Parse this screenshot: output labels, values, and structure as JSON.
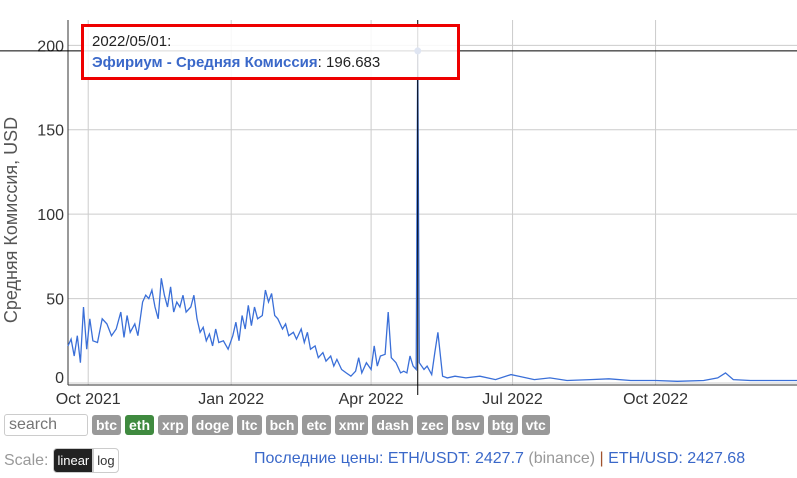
{
  "chart_data": {
    "type": "line",
    "ylabel": "Средняя Комиссия, USD",
    "ylim": [
      0,
      215
    ],
    "yticks": [
      0,
      50,
      100,
      150,
      200
    ],
    "xticks": [
      {
        "date": "2021-10-01",
        "label": "Oct 2021"
      },
      {
        "date": "2022-01-01",
        "label": "Jan 2022"
      },
      {
        "date": "2022-04-01",
        "label": "Apr 2022"
      },
      {
        "date": "2022-07-01",
        "label": "Jul 2022"
      },
      {
        "date": "2022-10-01",
        "label": "Oct 2022"
      }
    ],
    "xlim": [
      "2021-09-18",
      "2022-12-31"
    ],
    "grid": true,
    "color": "#3a6fd8",
    "series": [
      {
        "name": "Эфириум - Средняя Комиссия",
        "points": [
          [
            "2021-09-18",
            22
          ],
          [
            "2021-09-20",
            26
          ],
          [
            "2021-09-22",
            16
          ],
          [
            "2021-09-24",
            28
          ],
          [
            "2021-09-26",
            12
          ],
          [
            "2021-09-28",
            45
          ],
          [
            "2021-09-30",
            20
          ],
          [
            "2021-10-02",
            38
          ],
          [
            "2021-10-04",
            25
          ],
          [
            "2021-10-07",
            24
          ],
          [
            "2021-10-10",
            38
          ],
          [
            "2021-10-13",
            35
          ],
          [
            "2021-10-16",
            28
          ],
          [
            "2021-10-19",
            32
          ],
          [
            "2021-10-22",
            42
          ],
          [
            "2021-10-24",
            27
          ],
          [
            "2021-10-26",
            40
          ],
          [
            "2021-10-28",
            30
          ],
          [
            "2021-10-31",
            35
          ],
          [
            "2021-11-02",
            28
          ],
          [
            "2021-11-05",
            48
          ],
          [
            "2021-11-07",
            52
          ],
          [
            "2021-11-09",
            50
          ],
          [
            "2021-11-11",
            55
          ],
          [
            "2021-11-13",
            45
          ],
          [
            "2021-11-15",
            38
          ],
          [
            "2021-11-17",
            62
          ],
          [
            "2021-11-19",
            52
          ],
          [
            "2021-11-21",
            45
          ],
          [
            "2021-11-23",
            57
          ],
          [
            "2021-11-25",
            42
          ],
          [
            "2021-11-27",
            48
          ],
          [
            "2021-11-29",
            45
          ],
          [
            "2021-12-01",
            52
          ],
          [
            "2021-12-03",
            42
          ],
          [
            "2021-12-06",
            45
          ],
          [
            "2021-12-08",
            52
          ],
          [
            "2021-12-10",
            38
          ],
          [
            "2021-12-12",
            30
          ],
          [
            "2021-12-14",
            33
          ],
          [
            "2021-12-16",
            25
          ],
          [
            "2021-12-18",
            29
          ],
          [
            "2021-12-20",
            22
          ],
          [
            "2021-12-22",
            32
          ],
          [
            "2021-12-24",
            24
          ],
          [
            "2021-12-27",
            25
          ],
          [
            "2021-12-30",
            20
          ],
          [
            "2022-01-02",
            28
          ],
          [
            "2022-01-04",
            36
          ],
          [
            "2022-01-06",
            25
          ],
          [
            "2022-01-08",
            40
          ],
          [
            "2022-01-10",
            32
          ],
          [
            "2022-01-12",
            46
          ],
          [
            "2022-01-14",
            34
          ],
          [
            "2022-01-16",
            45
          ],
          [
            "2022-01-18",
            38
          ],
          [
            "2022-01-21",
            40
          ],
          [
            "2022-01-23",
            55
          ],
          [
            "2022-01-25",
            48
          ],
          [
            "2022-01-27",
            53
          ],
          [
            "2022-01-29",
            40
          ],
          [
            "2022-01-31",
            38
          ],
          [
            "2022-02-03",
            32
          ],
          [
            "2022-02-05",
            35
          ],
          [
            "2022-02-07",
            28
          ],
          [
            "2022-02-10",
            30
          ],
          [
            "2022-02-12",
            26
          ],
          [
            "2022-02-15",
            32
          ],
          [
            "2022-02-17",
            24
          ],
          [
            "2022-02-19",
            30
          ],
          [
            "2022-02-21",
            20
          ],
          [
            "2022-02-24",
            22
          ],
          [
            "2022-02-26",
            15
          ],
          [
            "2022-03-01",
            18
          ],
          [
            "2022-03-03",
            13
          ],
          [
            "2022-03-06",
            16
          ],
          [
            "2022-03-08",
            10
          ],
          [
            "2022-03-10",
            14
          ],
          [
            "2022-03-13",
            8
          ],
          [
            "2022-03-16",
            6
          ],
          [
            "2022-03-19",
            4
          ],
          [
            "2022-03-22",
            7
          ],
          [
            "2022-03-24",
            15
          ],
          [
            "2022-03-26",
            6
          ],
          [
            "2022-03-29",
            12
          ],
          [
            "2022-04-01",
            8
          ],
          [
            "2022-04-03",
            22
          ],
          [
            "2022-04-05",
            10
          ],
          [
            "2022-04-07",
            16
          ],
          [
            "2022-04-10",
            17
          ],
          [
            "2022-04-12",
            42
          ],
          [
            "2022-04-14",
            15
          ],
          [
            "2022-04-17",
            12
          ],
          [
            "2022-04-20",
            6
          ],
          [
            "2022-04-22",
            7
          ],
          [
            "2022-04-24",
            6
          ],
          [
            "2022-04-26",
            16
          ],
          [
            "2022-04-28",
            10
          ],
          [
            "2022-04-30",
            8
          ],
          [
            "2022-05-01",
            196.683
          ],
          [
            "2022-05-02",
            12
          ],
          [
            "2022-05-05",
            8
          ],
          [
            "2022-05-07",
            10
          ],
          [
            "2022-05-10",
            5
          ],
          [
            "2022-05-12",
            18
          ],
          [
            "2022-05-14",
            30
          ],
          [
            "2022-05-17",
            4
          ],
          [
            "2022-05-20",
            3
          ],
          [
            "2022-05-25",
            4
          ],
          [
            "2022-06-01",
            3
          ],
          [
            "2022-06-10",
            4
          ],
          [
            "2022-06-20",
            2
          ],
          [
            "2022-06-30",
            5
          ],
          [
            "2022-07-05",
            4
          ],
          [
            "2022-07-15",
            2
          ],
          [
            "2022-07-25",
            3
          ],
          [
            "2022-08-05",
            1.5
          ],
          [
            "2022-08-20",
            2
          ],
          [
            "2022-09-01",
            2.5
          ],
          [
            "2022-09-15",
            1.5
          ],
          [
            "2022-10-01",
            1.5
          ],
          [
            "2022-10-15",
            1
          ],
          [
            "2022-11-01",
            1.5
          ],
          [
            "2022-11-10",
            3
          ],
          [
            "2022-11-15",
            6
          ],
          [
            "2022-11-20",
            2
          ],
          [
            "2022-12-01",
            1.5
          ],
          [
            "2022-12-31",
            1.5
          ]
        ]
      }
    ]
  },
  "tooltip": {
    "date": "2022/05/01:",
    "series": "Эфириум - Средняя Комиссия",
    "value": "196.683"
  },
  "controls": {
    "search_placeholder": "search",
    "coins": [
      "btc",
      "eth",
      "xrp",
      "doge",
      "ltc",
      "bch",
      "etc",
      "xmr",
      "dash",
      "zec",
      "bsv",
      "btg",
      "vtc"
    ],
    "active_coin": "eth",
    "scale_label": "Scale:",
    "scale_options": [
      "linear",
      "log"
    ],
    "active_scale": "linear"
  },
  "prices": {
    "label": "Последние цены:",
    "pair1": "ETH/USDT: 2427.7",
    "source1": "(binance)",
    "sep": "|",
    "pair2": "ETH/USD: 2427.68"
  }
}
